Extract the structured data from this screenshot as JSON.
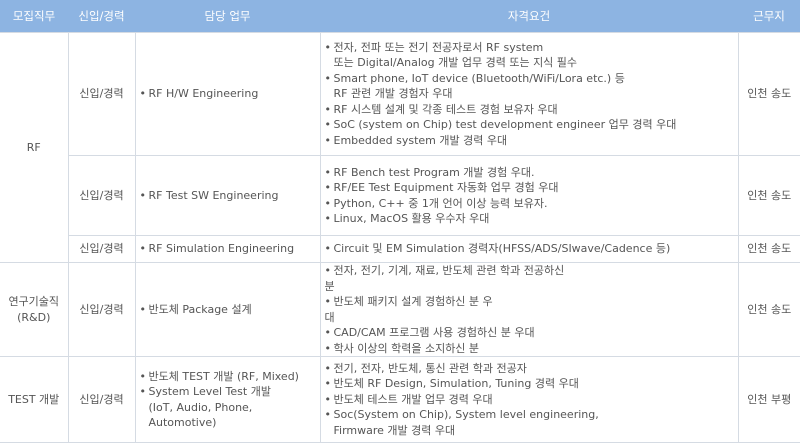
{
  "header": {
    "position": "모집직무",
    "type": "신입/경력",
    "duties": "담당 업무",
    "requirements": "자격요건",
    "location": "근무지"
  },
  "rows": [
    {
      "group": "RF",
      "type": "신입/경력",
      "duties": [
        "RF H/W Engineering"
      ],
      "requirements": [
        [
          "전자, 전파 또는 전기 전공자로서 RF system",
          "또는 Digital/Analog 개발 업무 경력 또는 지식 필수"
        ],
        [
          "Smart phone, IoT device (Bluetooth/WiFi/Lora etc.) 등",
          "RF 관련 개발 경험자 우대"
        ],
        [
          "RF 시스템 설계 및 각종 테스트 경험 보유자 우대"
        ],
        [
          "SoC (system on Chip) test development engineer 업무 경력 우대"
        ],
        [
          "Embedded system 개발 경력 우대"
        ]
      ],
      "location": "인천 송도"
    },
    {
      "type": "신입/경력",
      "duties": [
        "RF Test SW Engineering"
      ],
      "requirements": [
        [
          "RF Bench test  Program 개발 경험 우대."
        ],
        [
          "RF/EE Test Equipment 자동화 업무 경험 우대"
        ],
        [
          "Python, C++ 중 1개 언어 이상 능력 보유자."
        ],
        [
          "Linux, MacOS 활용 우수자 우대"
        ]
      ],
      "location": "인천 송도"
    },
    {
      "type": "신입/경력",
      "duties": [
        "RF Simulation Engineering"
      ],
      "requirements": [
        [
          "Circuit 및 EM Simulation 경력자(HFSS/ADS/SIwave/Cadence 등)"
        ]
      ],
      "location": "인천 송도"
    },
    {
      "group": "연구기술직\n(R&D)",
      "type": "신입/경력",
      "duties": [
        "반도체 Package 설계"
      ],
      "requirements": [
        [
          "전자, 전기, 기계, 재료, 반도체 관련 학과 전공하신",
          "분"
        ],
        [
          "반도체 패키지 설계 경험하신 분 우",
          "대"
        ],
        [
          "CAD/CAM 프로그램 사용 경험하신 분 우대"
        ],
        [
          "학사 이상의 학력을 소지하신 분"
        ]
      ],
      "location": "인천 송도"
    },
    {
      "group": "TEST 개발",
      "type": "신입/경력",
      "duties": [
        "반도체 TEST 개발 (RF, Mixed)",
        "System Level Test 개발\n(IoT, Audio, Phone, Automotive)"
      ],
      "requirements": [
        [
          "전기, 전자, 반도체, 통신 관련 학과 전공자"
        ],
        [
          "반도체 RF Design, Simulation, Tuning 경력 우대"
        ],
        [
          "반도체 테스트 개발 업무 경력 우대"
        ],
        [
          "Soc(System on Chip), System level engineering,",
          "Firmware 개발 경력 우대"
        ]
      ],
      "location": "인천 부평"
    }
  ]
}
